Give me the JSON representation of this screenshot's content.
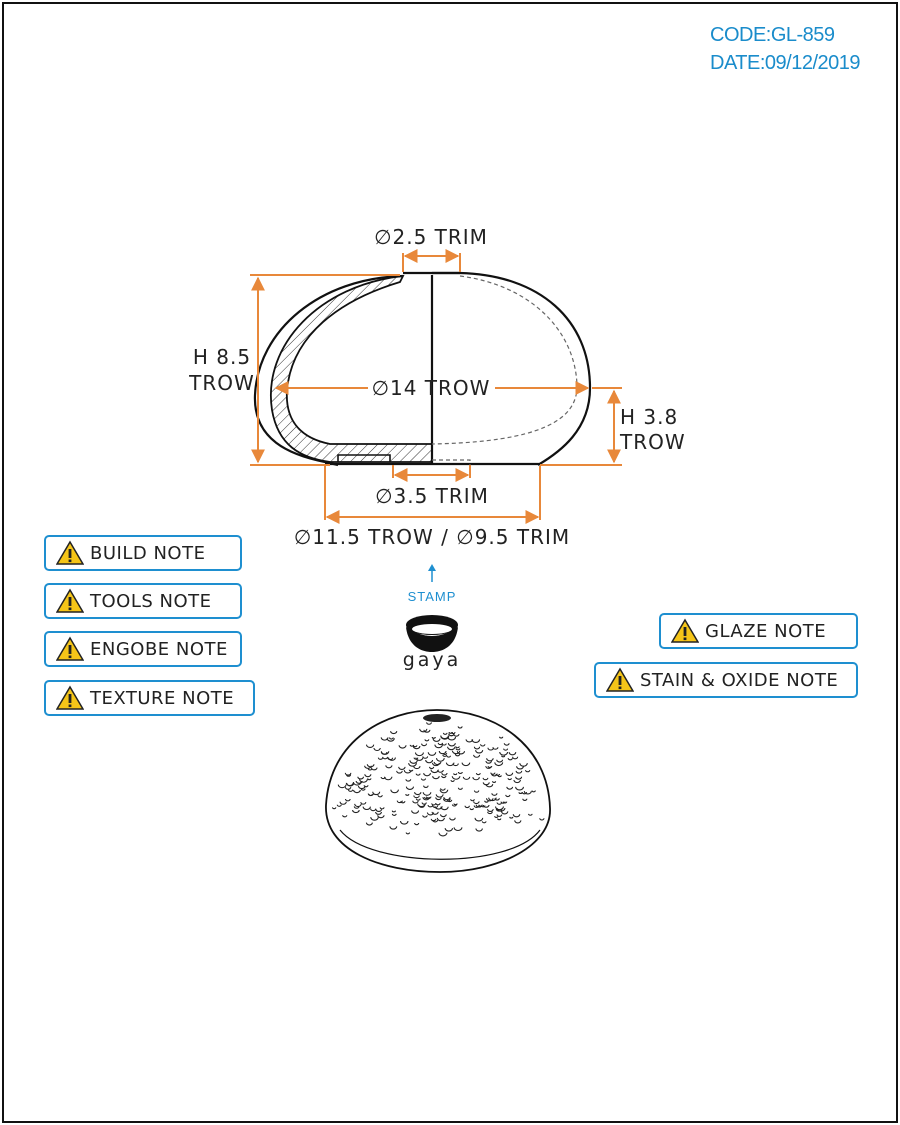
{
  "header": {
    "code": "CODE:GL-859",
    "date": "DATE:09/12/2019"
  },
  "dimensions": {
    "top_opening": "∅2.5 TRIM",
    "height_left_1": "H 8.5",
    "height_left_2": "TROW",
    "width_mid": "∅14 TROW",
    "height_right_1": "H 3.8",
    "height_right_2": "TROW",
    "base_inner": "∅3.5 TRIM",
    "base_outer": "∅11.5 TROW / ∅9.5 TRIM"
  },
  "stamp": {
    "label": "STAMP",
    "brand": "gaya"
  },
  "notes_left": [
    {
      "label": "BUILD NOTE",
      "icon": "warning-icon"
    },
    {
      "label": "TOOLS NOTE",
      "icon": "warning-icon"
    },
    {
      "label": "ENGOBE NOTE",
      "icon": "warning-icon"
    },
    {
      "label": "TEXTURE NOTE",
      "icon": "warning-icon"
    }
  ],
  "notes_right": [
    {
      "label": "GLAZE NOTE",
      "icon": "warning-icon"
    },
    {
      "label": "STAIN & OXIDE NOTE",
      "icon": "warning-icon"
    }
  ],
  "colors": {
    "dimension": "#e8883a",
    "accent": "#1e8fd0",
    "warning": "#f5c518",
    "line": "#1a1a1a"
  }
}
